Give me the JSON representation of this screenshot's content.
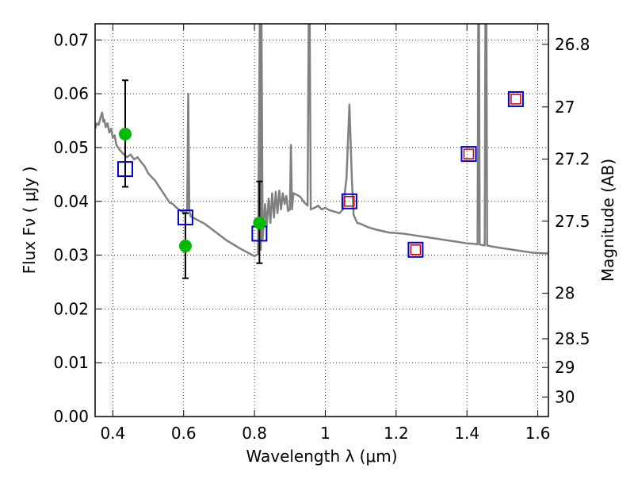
{
  "chart_data": {
    "type": "line",
    "xlabel": "Wavelength  λ (μm)",
    "ylabel": "Flux  Fν  ( μJy )",
    "ylabel_right": "Magnitude (AB)",
    "xlim": [
      0.35,
      1.63
    ],
    "ylim": [
      0.0,
      0.073
    ],
    "grid": true,
    "x_ticks": [
      {
        "value": 0.4,
        "label": "0.4"
      },
      {
        "value": 0.6,
        "label": "0.6"
      },
      {
        "value": 0.8,
        "label": "0.8"
      },
      {
        "value": 1.0,
        "label": "1"
      },
      {
        "value": 1.2,
        "label": "1.2"
      },
      {
        "value": 1.4,
        "label": "1.4"
      },
      {
        "value": 1.6,
        "label": "1.6"
      }
    ],
    "y_ticks": [
      {
        "value": 0.0,
        "label": "0.00"
      },
      {
        "value": 0.01,
        "label": "0.01"
      },
      {
        "value": 0.02,
        "label": "0.02"
      },
      {
        "value": 0.03,
        "label": "0.03"
      },
      {
        "value": 0.04,
        "label": "0.04"
      },
      {
        "value": 0.05,
        "label": "0.05"
      },
      {
        "value": 0.06,
        "label": "0.06"
      },
      {
        "value": 0.07,
        "label": "0.07"
      }
    ],
    "right_ticks": [
      {
        "mag": 26.8,
        "label": "26.8"
      },
      {
        "mag": 27.0,
        "label": "27"
      },
      {
        "mag": 27.2,
        "label": "27.2"
      },
      {
        "mag": 27.5,
        "label": "27.5"
      },
      {
        "mag": 28.0,
        "label": "28"
      },
      {
        "mag": 28.5,
        "label": "28.5"
      },
      {
        "mag": 29.0,
        "label": "29"
      },
      {
        "mag": 30.0,
        "label": "30"
      }
    ],
    "model_spectrum": {
      "color": "#808080",
      "points": [
        [
          0.35,
          0.0535
        ],
        [
          0.355,
          0.0545
        ],
        [
          0.36,
          0.0542
        ],
        [
          0.365,
          0.0555
        ],
        [
          0.37,
          0.0565
        ],
        [
          0.373,
          0.0548
        ],
        [
          0.376,
          0.0552
        ],
        [
          0.38,
          0.0538
        ],
        [
          0.385,
          0.0545
        ],
        [
          0.39,
          0.0528
        ],
        [
          0.395,
          0.0535
        ],
        [
          0.4,
          0.0518
        ],
        [
          0.405,
          0.0523
        ],
        [
          0.41,
          0.0505
        ],
        [
          0.42,
          0.0495
        ],
        [
          0.43,
          0.0488
        ],
        [
          0.44,
          0.0482
        ],
        [
          0.45,
          0.0487
        ],
        [
          0.46,
          0.0478
        ],
        [
          0.47,
          0.0482
        ],
        [
          0.48,
          0.0473
        ],
        [
          0.49,
          0.0465
        ],
        [
          0.5,
          0.0452
        ],
        [
          0.51,
          0.0445
        ],
        [
          0.52,
          0.0438
        ],
        [
          0.53,
          0.0428
        ],
        [
          0.54,
          0.0418
        ],
        [
          0.55,
          0.0408
        ],
        [
          0.56,
          0.0398
        ],
        [
          0.57,
          0.0395
        ],
        [
          0.58,
          0.0388
        ],
        [
          0.59,
          0.0383
        ],
        [
          0.6,
          0.038
        ],
        [
          0.605,
          0.0378
        ],
        [
          0.61,
          0.0384
        ],
        [
          0.613,
          0.06
        ],
        [
          0.616,
          0.0382
        ],
        [
          0.62,
          0.0372
        ],
        [
          0.64,
          0.0365
        ],
        [
          0.66,
          0.0358
        ],
        [
          0.68,
          0.0348
        ],
        [
          0.7,
          0.0338
        ],
        [
          0.72,
          0.0328
        ],
        [
          0.74,
          0.032
        ],
        [
          0.76,
          0.0312
        ],
        [
          0.78,
          0.0305
        ],
        [
          0.8,
          0.0298
        ],
        [
          0.81,
          0.0302
        ],
        [
          0.815,
          0.073
        ],
        [
          0.818,
          0.031
        ],
        [
          0.82,
          0.073
        ],
        [
          0.823,
          0.033
        ],
        [
          0.83,
          0.0395
        ],
        [
          0.835,
          0.0355
        ],
        [
          0.84,
          0.0405
        ],
        [
          0.845,
          0.036
        ],
        [
          0.85,
          0.0415
        ],
        [
          0.855,
          0.037
        ],
        [
          0.86,
          0.0418
        ],
        [
          0.865,
          0.0378
        ],
        [
          0.87,
          0.042
        ],
        [
          0.875,
          0.0385
        ],
        [
          0.88,
          0.0415
        ],
        [
          0.885,
          0.0395
        ],
        [
          0.89,
          0.041
        ],
        [
          0.895,
          0.0382
        ],
        [
          0.9,
          0.0385
        ],
        [
          0.903,
          0.0505
        ],
        [
          0.906,
          0.0385
        ],
        [
          0.91,
          0.0415
        ],
        [
          0.92,
          0.0412
        ],
        [
          0.93,
          0.0408
        ],
        [
          0.94,
          0.0398
        ],
        [
          0.95,
          0.0392
        ],
        [
          0.953,
          0.073
        ],
        [
          0.956,
          0.073
        ],
        [
          0.959,
          0.0385
        ],
        [
          0.97,
          0.0388
        ],
        [
          0.98,
          0.0392
        ],
        [
          0.99,
          0.0385
        ],
        [
          1.0,
          0.0388
        ],
        [
          1.01,
          0.0384
        ],
        [
          1.02,
          0.0382
        ],
        [
          1.03,
          0.038
        ],
        [
          1.04,
          0.0378
        ],
        [
          1.05,
          0.0385
        ],
        [
          1.06,
          0.0445
        ],
        [
          1.068,
          0.058
        ],
        [
          1.075,
          0.044
        ],
        [
          1.08,
          0.0375
        ],
        [
          1.09,
          0.036
        ],
        [
          1.1,
          0.0358
        ],
        [
          1.12,
          0.0352
        ],
        [
          1.14,
          0.0348
        ],
        [
          1.16,
          0.0345
        ],
        [
          1.18,
          0.0342
        ],
        [
          1.2,
          0.0341
        ],
        [
          1.22,
          0.034
        ],
        [
          1.24,
          0.0338
        ],
        [
          1.26,
          0.0336
        ],
        [
          1.28,
          0.0334
        ],
        [
          1.3,
          0.0332
        ],
        [
          1.32,
          0.033
        ],
        [
          1.34,
          0.0328
        ],
        [
          1.36,
          0.0326
        ],
        [
          1.38,
          0.0324
        ],
        [
          1.4,
          0.0322
        ],
        [
          1.42,
          0.0321
        ],
        [
          1.43,
          0.032
        ],
        [
          1.432,
          0.073
        ],
        [
          1.434,
          0.073
        ],
        [
          1.436,
          0.032
        ],
        [
          1.44,
          0.0319
        ],
        [
          1.45,
          0.0318
        ],
        [
          1.452,
          0.073
        ],
        [
          1.455,
          0.073
        ],
        [
          1.457,
          0.0318
        ],
        [
          1.47,
          0.0316
        ],
        [
          1.48,
          0.0315
        ],
        [
          1.49,
          0.0314
        ],
        [
          1.5,
          0.0313
        ],
        [
          1.52,
          0.0311
        ],
        [
          1.54,
          0.0309
        ],
        [
          1.56,
          0.0307
        ],
        [
          1.58,
          0.0305
        ],
        [
          1.6,
          0.0304
        ],
        [
          1.63,
          0.0303
        ]
      ]
    },
    "model_photometry": {
      "color": "#0000cc",
      "marker": "open-square",
      "points": [
        [
          0.435,
          0.046
        ],
        [
          0.605,
          0.037
        ],
        [
          0.814,
          0.034
        ],
        [
          1.068,
          0.04
        ],
        [
          1.255,
          0.031
        ],
        [
          1.405,
          0.0488
        ],
        [
          1.538,
          0.059
        ]
      ]
    },
    "observed_ir_photometry": {
      "color": "#cc0000",
      "marker": "open-square",
      "points": [
        [
          1.068,
          0.04
        ],
        [
          1.255,
          0.031
        ],
        [
          1.405,
          0.0488
        ],
        [
          1.538,
          0.059
        ]
      ]
    },
    "observed_photometry": {
      "color": "#00bb00",
      "marker": "filled-circle",
      "points": [
        {
          "x": 0.435,
          "y": 0.0525,
          "err_low": 0.0427,
          "err_high": 0.0625
        },
        {
          "x": 0.605,
          "y": 0.0317,
          "err_low": 0.0257,
          "err_high": 0.0378
        },
        {
          "x": 0.814,
          "y": 0.036,
          "err_low": 0.0285,
          "err_high": 0.0437
        }
      ]
    }
  }
}
